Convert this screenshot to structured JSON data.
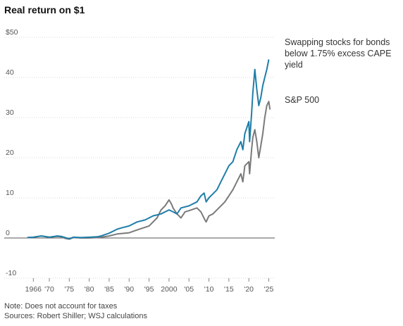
{
  "title": "Real return on $1",
  "note": "Note: Does not account for taxes",
  "sources": "Sources: Robert Shiller; WSJ calculations",
  "colors": {
    "strategy": "#1f7ea8",
    "sp500": "#7a7a7a",
    "grid": "#d9d9d9",
    "zero": "#555555"
  },
  "chart_data": {
    "type": "line",
    "xlim": [
      1964,
      2026.5
    ],
    "ylim": [
      -10,
      50
    ],
    "y_ticks": [
      {
        "value": 50,
        "label": "$50"
      },
      {
        "value": 40,
        "label": "40"
      },
      {
        "value": 30,
        "label": "30"
      },
      {
        "value": 20,
        "label": "20"
      },
      {
        "value": 10,
        "label": "10"
      },
      {
        "value": 0,
        "label": "0"
      },
      {
        "value": -10,
        "label": "-10"
      }
    ],
    "x_ticks": [
      {
        "value": 1966,
        "label": "1966"
      },
      {
        "value": 1970,
        "label": "'70"
      },
      {
        "value": 1975,
        "label": "'75"
      },
      {
        "value": 1980,
        "label": "'80"
      },
      {
        "value": 1985,
        "label": "'85"
      },
      {
        "value": 1990,
        "label": "'90"
      },
      {
        "value": 1995,
        "label": "'95"
      },
      {
        "value": 2000,
        "label": "2000"
      },
      {
        "value": 2005,
        "label": "'05"
      },
      {
        "value": 2010,
        "label": "'10"
      },
      {
        "value": 2015,
        "label": "'15"
      },
      {
        "value": 2020,
        "label": "'20"
      },
      {
        "value": 2025,
        "label": "'25"
      }
    ],
    "series": [
      {
        "name": "Swapping stocks for bonds below 1.75% excess CAPE yield",
        "label_lines": [
          "Swapping stocks for bonds",
          "below 1.75% excess CAPE",
          "yield"
        ],
        "color": "#1f7ea8",
        "points": [
          [
            1964.5,
            0.1
          ],
          [
            1966,
            0.2
          ],
          [
            1968,
            0.5
          ],
          [
            1970,
            0.2
          ],
          [
            1972,
            0.5
          ],
          [
            1973,
            0.4
          ],
          [
            1974,
            0.1
          ],
          [
            1975,
            -0.2
          ],
          [
            1976,
            0.2
          ],
          [
            1978,
            0.1
          ],
          [
            1980,
            0.2
          ],
          [
            1982,
            0.3
          ],
          [
            1983,
            0.5
          ],
          [
            1985,
            1.2
          ],
          [
            1987,
            2.2
          ],
          [
            1988,
            2.5
          ],
          [
            1990,
            3.0
          ],
          [
            1992,
            4.0
          ],
          [
            1994,
            4.5
          ],
          [
            1995,
            5.0
          ],
          [
            1996,
            5.5
          ],
          [
            1998,
            6.0
          ],
          [
            2000,
            7.0
          ],
          [
            2001,
            6.5
          ],
          [
            2002,
            6.0
          ],
          [
            2003,
            7.5
          ],
          [
            2005,
            8.0
          ],
          [
            2007,
            9.0
          ],
          [
            2008,
            10.5
          ],
          [
            2008.8,
            11.2
          ],
          [
            2009.3,
            9.0
          ],
          [
            2010,
            10.0
          ],
          [
            2011,
            11.0
          ],
          [
            2012,
            12.0
          ],
          [
            2013,
            14.0
          ],
          [
            2014,
            16.0
          ],
          [
            2015,
            18.0
          ],
          [
            2016,
            19.0
          ],
          [
            2017,
            22.0
          ],
          [
            2018,
            24.0
          ],
          [
            2018.5,
            22.0
          ],
          [
            2019,
            26.0
          ],
          [
            2020,
            29.0
          ],
          [
            2020.2,
            24.0
          ],
          [
            2020.7,
            31.0
          ],
          [
            2021,
            36.0
          ],
          [
            2021.5,
            42.0
          ],
          [
            2022,
            37.0
          ],
          [
            2022.5,
            33.0
          ],
          [
            2023,
            35.0
          ],
          [
            2023.5,
            38.0
          ],
          [
            2024,
            40.0
          ],
          [
            2024.5,
            42.0
          ],
          [
            2025,
            44.5
          ]
        ]
      },
      {
        "name": "S&P 500",
        "label_lines": [
          "S&P 500"
        ],
        "color": "#7a7a7a",
        "points": [
          [
            1964.5,
            0.1
          ],
          [
            1966,
            0.2
          ],
          [
            1968,
            0.5
          ],
          [
            1970,
            0.2
          ],
          [
            1972,
            0.4
          ],
          [
            1973,
            0.3
          ],
          [
            1974,
            -0.1
          ],
          [
            1975,
            -0.3
          ],
          [
            1976,
            0.1
          ],
          [
            1978,
            0.0
          ],
          [
            1980,
            0.0
          ],
          [
            1982,
            0.1
          ],
          [
            1983,
            0.2
          ],
          [
            1985,
            0.5
          ],
          [
            1987,
            1.0
          ],
          [
            1990,
            1.3
          ],
          [
            1992,
            2.0
          ],
          [
            1995,
            3.0
          ],
          [
            1997,
            5.0
          ],
          [
            1998,
            7.0
          ],
          [
            1999,
            8.0
          ],
          [
            2000,
            9.5
          ],
          [
            2000.6,
            8.5
          ],
          [
            2001,
            7.5
          ],
          [
            2002,
            6.0
          ],
          [
            2003,
            5.0
          ],
          [
            2004,
            6.5
          ],
          [
            2005,
            6.8
          ],
          [
            2007,
            7.5
          ],
          [
            2008,
            6.5
          ],
          [
            2009,
            4.5
          ],
          [
            2009.3,
            4.0
          ],
          [
            2010,
            5.5
          ],
          [
            2011,
            6.0
          ],
          [
            2012,
            7.0
          ],
          [
            2013,
            8.0
          ],
          [
            2014,
            9.0
          ],
          [
            2015,
            10.5
          ],
          [
            2016,
            12.0
          ],
          [
            2017,
            14.0
          ],
          [
            2018,
            16.0
          ],
          [
            2018.5,
            14.0
          ],
          [
            2019,
            18.0
          ],
          [
            2020,
            19.0
          ],
          [
            2020.2,
            16.0
          ],
          [
            2020.7,
            22.0
          ],
          [
            2021,
            25.0
          ],
          [
            2021.5,
            27.0
          ],
          [
            2022,
            24.0
          ],
          [
            2022.5,
            20.0
          ],
          [
            2023,
            23.0
          ],
          [
            2023.5,
            26.0
          ],
          [
            2024,
            30.0
          ],
          [
            2024.5,
            33.0
          ],
          [
            2025,
            34.0
          ],
          [
            2025.3,
            32.0
          ]
        ]
      }
    ]
  }
}
